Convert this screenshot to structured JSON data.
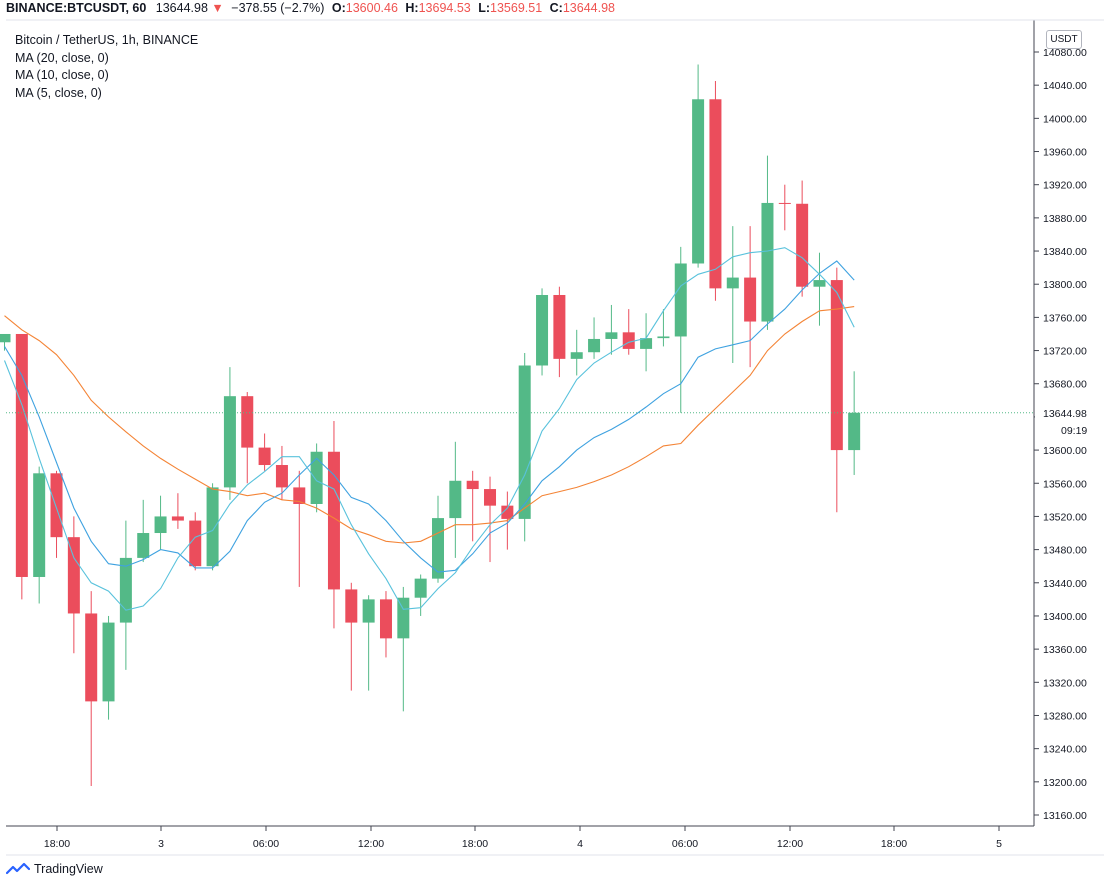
{
  "topbar": {
    "symbol": "BINANCE:BTCUSDT, 60",
    "last": "13644.98",
    "arrow": "▼",
    "change": "−378.55 (−2.7%)",
    "o_label": "O:",
    "o_value": "13600.46",
    "h_label": "H:",
    "h_value": "13694.53",
    "l_label": "L:",
    "l_value": "13569.51",
    "c_label": "C:",
    "c_value": "13644.98"
  },
  "legend": {
    "title": "Bitcoin / TetherUS, 1h, BINANCE",
    "ma20": "MA (20, close, 0)",
    "ma10": "MA (10, close, 0)",
    "ma5": "MA (5, close, 0)"
  },
  "currency_button": "USDT",
  "price_tag": {
    "value": "13644.98",
    "countdown": "09:19"
  },
  "footer": {
    "brand": "TradingView"
  },
  "colors": {
    "up": "#53b987",
    "down": "#eb4d5c",
    "ma20": "#f48436",
    "ma10": "#3fa2e0",
    "ma5": "#59c2dc",
    "axis_text": "#131722",
    "grid": "#d1d4dc"
  },
  "chart_data": {
    "type": "candlestick",
    "y_ticks": [
      "13160.00",
      "13200.00",
      "13240.00",
      "13280.00",
      "13320.00",
      "13360.00",
      "13400.00",
      "13440.00",
      "13480.00",
      "13520.00",
      "13560.00",
      "13600.00",
      "13640.00",
      "13680.00",
      "13720.00",
      "13760.00",
      "13800.00",
      "13840.00",
      "13880.00",
      "13920.00",
      "13960.00",
      "14000.00",
      "14040.00",
      "14080.00"
    ],
    "x_ticks": [
      "18:00",
      "3",
      "06:00",
      "12:00",
      "18:00",
      "4",
      "06:00",
      "12:00",
      "18:00",
      "5"
    ],
    "ylim": [
      13150,
      14100
    ],
    "candles": [
      {
        "o": 13730,
        "h": 13740,
        "l": 13720,
        "c": 13740
      },
      {
        "o": 13740,
        "h": 13740,
        "l": 13420,
        "c": 13447
      },
      {
        "o": 13447,
        "h": 13580,
        "l": 13415,
        "c": 13572
      },
      {
        "o": 13572,
        "h": 13575,
        "l": 13470,
        "c": 13495
      },
      {
        "o": 13495,
        "h": 13520,
        "l": 13355,
        "c": 13403
      },
      {
        "o": 13403,
        "h": 13430,
        "l": 13195,
        "c": 13297
      },
      {
        "o": 13297,
        "h": 13400,
        "l": 13275,
        "c": 13392
      },
      {
        "o": 13392,
        "h": 13515,
        "l": 13335,
        "c": 13470
      },
      {
        "o": 13470,
        "h": 13540,
        "l": 13465,
        "c": 13500
      },
      {
        "o": 13500,
        "h": 13545,
        "l": 13480,
        "c": 13520
      },
      {
        "o": 13520,
        "h": 13548,
        "l": 13505,
        "c": 13515
      },
      {
        "o": 13515,
        "h": 13525,
        "l": 13455,
        "c": 13460
      },
      {
        "o": 13460,
        "h": 13560,
        "l": 13455,
        "c": 13555
      },
      {
        "o": 13555,
        "h": 13700,
        "l": 13540,
        "c": 13665
      },
      {
        "o": 13665,
        "h": 13670,
        "l": 13560,
        "c": 13603
      },
      {
        "o": 13603,
        "h": 13620,
        "l": 13575,
        "c": 13582
      },
      {
        "o": 13582,
        "h": 13605,
        "l": 13540,
        "c": 13555
      },
      {
        "o": 13555,
        "h": 13575,
        "l": 13435,
        "c": 13535
      },
      {
        "o": 13535,
        "h": 13608,
        "l": 13525,
        "c": 13598
      },
      {
        "o": 13598,
        "h": 13635,
        "l": 13385,
        "c": 13432
      },
      {
        "o": 13432,
        "h": 13440,
        "l": 13310,
        "c": 13392
      },
      {
        "o": 13392,
        "h": 13425,
        "l": 13310,
        "c": 13420
      },
      {
        "o": 13420,
        "h": 13430,
        "l": 13350,
        "c": 13373
      },
      {
        "o": 13373,
        "h": 13435,
        "l": 13285,
        "c": 13422
      },
      {
        "o": 13422,
        "h": 13450,
        "l": 13400,
        "c": 13445
      },
      {
        "o": 13445,
        "h": 13545,
        "l": 13440,
        "c": 13518
      },
      {
        "o": 13518,
        "h": 13610,
        "l": 13470,
        "c": 13563
      },
      {
        "o": 13563,
        "h": 13575,
        "l": 13490,
        "c": 13553
      },
      {
        "o": 13553,
        "h": 13568,
        "l": 13465,
        "c": 13533
      },
      {
        "o": 13533,
        "h": 13550,
        "l": 13480,
        "c": 13517
      },
      {
        "o": 13517,
        "h": 13717,
        "l": 13490,
        "c": 13702
      },
      {
        "o": 13702,
        "h": 13795,
        "l": 13690,
        "c": 13787
      },
      {
        "o": 13787,
        "h": 13797,
        "l": 13688,
        "c": 13710
      },
      {
        "o": 13710,
        "h": 13745,
        "l": 13690,
        "c": 13718
      },
      {
        "o": 13718,
        "h": 13760,
        "l": 13710,
        "c": 13734
      },
      {
        "o": 13734,
        "h": 13775,
        "l": 13715,
        "c": 13742
      },
      {
        "o": 13742,
        "h": 13770,
        "l": 13715,
        "c": 13722
      },
      {
        "o": 13722,
        "h": 13765,
        "l": 13695,
        "c": 13735
      },
      {
        "o": 13735,
        "h": 13770,
        "l": 13725,
        "c": 13737
      },
      {
        "o": 13737,
        "h": 13845,
        "l": 13645,
        "c": 13825
      },
      {
        "o": 13825,
        "h": 14065,
        "l": 13820,
        "c": 14023
      },
      {
        "o": 14023,
        "h": 14045,
        "l": 13780,
        "c": 13795
      },
      {
        "o": 13795,
        "h": 13870,
        "l": 13705,
        "c": 13808
      },
      {
        "o": 13808,
        "h": 13870,
        "l": 13700,
        "c": 13755
      },
      {
        "o": 13755,
        "h": 13955,
        "l": 13745,
        "c": 13898
      },
      {
        "o": 13898,
        "h": 13920,
        "l": 13865,
        "c": 13897
      },
      {
        "o": 13897,
        "h": 13925,
        "l": 13785,
        "c": 13797
      },
      {
        "o": 13797,
        "h": 13838,
        "l": 13750,
        "c": 13805
      },
      {
        "o": 13805,
        "h": 13820,
        "l": 13525,
        "c": 13600
      },
      {
        "o": 13600,
        "h": 13695,
        "l": 13570,
        "c": 13645
      }
    ],
    "ma20": [
      13762,
      13745,
      13732,
      13715,
      13690,
      13660,
      13640,
      13622,
      13605,
      13590,
      13577,
      13565,
      13553,
      13550,
      13545,
      13548,
      13540,
      13538,
      13530,
      13518,
      13505,
      13498,
      13490,
      13488,
      13490,
      13500,
      13510,
      13510,
      13512,
      13515,
      13530,
      13545,
      13550,
      13555,
      13562,
      13570,
      13580,
      13592,
      13605,
      13608,
      13630,
      13650,
      13670,
      13690,
      13720,
      13740,
      13755,
      13768,
      13770,
      13773
    ],
    "ma10": [
      13725,
      13690,
      13640,
      13585,
      13530,
      13490,
      13463,
      13460,
      13468,
      13480,
      13476,
      13458,
      13458,
      13478,
      13515,
      13537,
      13548,
      13570,
      13590,
      13570,
      13543,
      13535,
      13515,
      13490,
      13470,
      13453,
      13455,
      13475,
      13500,
      13512,
      13535,
      13563,
      13580,
      13600,
      13615,
      13625,
      13637,
      13652,
      13668,
      13680,
      13712,
      13722,
      13727,
      13732,
      13752,
      13770,
      13793,
      13813,
      13828,
      13805
    ],
    "ma5": [
      13708,
      13655,
      13590,
      13530,
      13470,
      13440,
      13430,
      13407,
      13412,
      13433,
      13470,
      13495,
      13503,
      13535,
      13558,
      13574,
      13592,
      13592,
      13563,
      13553,
      13510,
      13475,
      13445,
      13408,
      13410,
      13433,
      13452,
      13483,
      13510,
      13530,
      13570,
      13623,
      13650,
      13685,
      13705,
      13718,
      13730,
      13735,
      13768,
      13798,
      13812,
      13818,
      13833,
      13838,
      13840,
      13844,
      13832,
      13812,
      13790,
      13748
    ]
  }
}
